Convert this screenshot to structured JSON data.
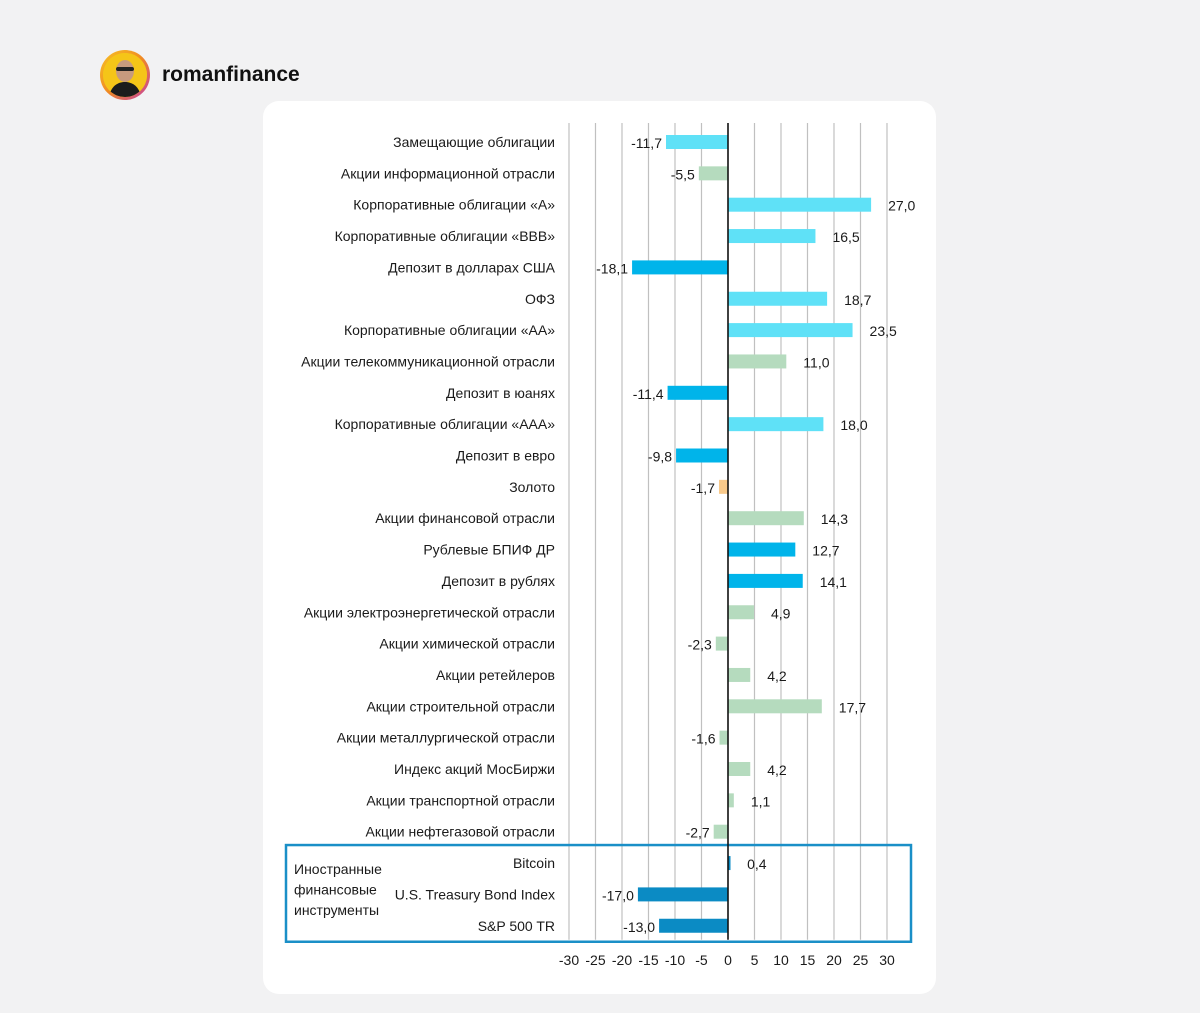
{
  "author": {
    "name": "romanfinance"
  },
  "chart_data": {
    "type": "bar",
    "orientation": "horizontal",
    "xlim": [
      -30,
      30
    ],
    "ticks": [
      -30,
      -25,
      -20,
      -15,
      -10,
      -5,
      0,
      5,
      10,
      15,
      20,
      25,
      30
    ],
    "group_label": [
      "Иностранные",
      "финансовые",
      "инструменты"
    ],
    "colors": {
      "cyan": "#5fe1f7",
      "blue": "#00b4ea",
      "green": "#b5dbbe",
      "orange": "#f8c98a",
      "darkblue": "#0b8bc4",
      "frame": "#1a8fc7",
      "grid": "#c0c0c0"
    },
    "bars": [
      {
        "label": "Замещающие облигации",
        "value": -11.7,
        "text": "-11,7",
        "color": "cyan"
      },
      {
        "label": "Акции информационной отрасли",
        "value": -5.5,
        "text": "-5,5",
        "color": "green"
      },
      {
        "label": "Корпоративные облигации «А»",
        "value": 27.0,
        "text": "27,0",
        "color": "cyan"
      },
      {
        "label": "Корпоративные облигации «BBB»",
        "value": 16.5,
        "text": "16,5",
        "color": "cyan"
      },
      {
        "label": "Депозит в долларах США",
        "value": -18.1,
        "text": "-18,1",
        "color": "blue"
      },
      {
        "label": "ОФЗ",
        "value": 18.7,
        "text": "18,7",
        "color": "cyan"
      },
      {
        "label": "Корпоративные облигации «АА»",
        "value": 23.5,
        "text": "23,5",
        "color": "cyan"
      },
      {
        "label": "Акции телекоммуникационной отрасли",
        "value": 11.0,
        "text": "11,0",
        "color": "green"
      },
      {
        "label": "Депозит в юанях",
        "value": -11.4,
        "text": "-11,4",
        "color": "blue"
      },
      {
        "label": "Корпоративные облигации «ААА»",
        "value": 18.0,
        "text": "18,0",
        "color": "cyan"
      },
      {
        "label": "Депозит в евро",
        "value": -9.8,
        "text": "-9,8",
        "color": "blue"
      },
      {
        "label": "Золото",
        "value": -1.7,
        "text": "-1,7",
        "color": "orange"
      },
      {
        "label": "Акции финансовой отрасли",
        "value": 14.3,
        "text": "14,3",
        "color": "green"
      },
      {
        "label": "Рублевые БПИФ ДР",
        "value": 12.7,
        "text": "12,7",
        "color": "blue"
      },
      {
        "label": "Депозит в рублях",
        "value": 14.1,
        "text": "14,1",
        "color": "blue"
      },
      {
        "label": "Акции электроэнергетической отрасли",
        "value": 4.9,
        "text": "4,9",
        "color": "green"
      },
      {
        "label": "Акции химической отрасли",
        "value": -2.3,
        "text": "-2,3",
        "color": "green"
      },
      {
        "label": "Акции ретейлеров",
        "value": 4.2,
        "text": "4,2",
        "color": "green"
      },
      {
        "label": "Акции строительной отрасли",
        "value": 17.7,
        "text": "17,7",
        "color": "green"
      },
      {
        "label": "Акции металлургической отрасли",
        "value": -1.6,
        "text": "-1,6",
        "color": "green"
      },
      {
        "label": "Индекс акций МосБиржи",
        "value": 4.2,
        "text": "4,2",
        "color": "green"
      },
      {
        "label": "Акции транспортной отрасли",
        "value": 1.1,
        "text": "1,1",
        "color": "green"
      },
      {
        "label": "Акции нефтегазовой отрасли",
        "value": -2.7,
        "text": "-2,7",
        "color": "green"
      },
      {
        "label": "Bitcoin",
        "value": 0.4,
        "text": "0,4",
        "color": "darkblue"
      },
      {
        "label": "U.S. Treasury Bond Index",
        "value": -17.0,
        "text": "-17,0",
        "color": "darkblue"
      },
      {
        "label": "S&P 500 TR",
        "value": -13.0,
        "text": "-13,0",
        "color": "darkblue"
      }
    ]
  }
}
